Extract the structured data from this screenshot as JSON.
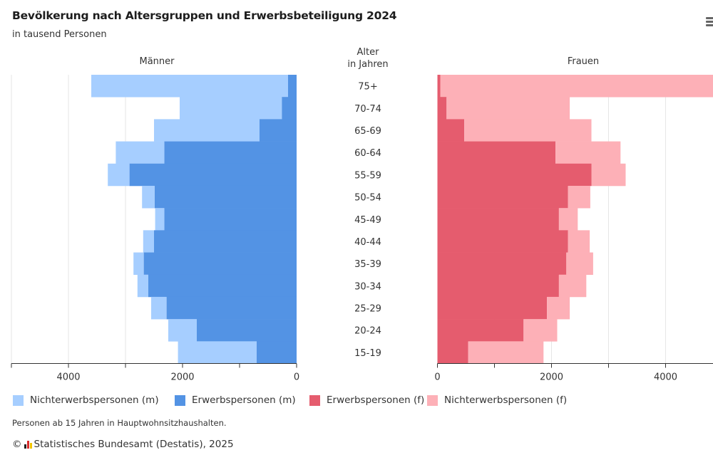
{
  "header": {
    "title": "Bevölkerung nach Altersgruppen und Erwerbsbeteiligung 2024",
    "subtitle": "in tausend Personen",
    "menu_icon": "hamburger-menu-icon"
  },
  "panels": {
    "left_title": "Männer",
    "center_title_line1": "Alter",
    "center_title_line2": "in Jahren",
    "right_title": "Frauen"
  },
  "colors": {
    "men_non_working": "#A6CEFF",
    "men_working": "#5393E4",
    "women_working": "#E55C6E",
    "women_non_working": "#FDB0B7",
    "grid": "#e6e6e6",
    "axis": "#333333"
  },
  "chart_data": {
    "type": "bar",
    "subtype": "population-pyramid (stacked horizontal bars, mirrored)",
    "title": "Bevölkerung nach Altersgruppen und Erwerbsbeteiligung 2024",
    "subtitle": "in tausend Personen",
    "unit": "tausend Personen",
    "categories": [
      "75+",
      "70-74",
      "65-69",
      "60-64",
      "55-59",
      "50-54",
      "45-49",
      "40-44",
      "35-39",
      "30-34",
      "25-29",
      "20-24",
      "15-19"
    ],
    "category_axis_label": "Alter in Jahren",
    "left_panel": {
      "label": "Männer",
      "xlim": [
        0,
        5000
      ],
      "ticks": [
        0,
        2000,
        4000
      ],
      "minor_ticks": [
        1000,
        3000,
        5000
      ],
      "direction": "reversed",
      "series": [
        {
          "name": "Erwerbspersonen (m)",
          "values": [
            150,
            260,
            650,
            2320,
            2930,
            2490,
            2320,
            2500,
            2680,
            2600,
            2280,
            1750,
            700
          ]
        },
        {
          "name": "Nichterwerbspersonen (m)",
          "values": [
            3450,
            1790,
            1850,
            850,
            380,
            220,
            160,
            190,
            180,
            190,
            270,
            500,
            1380
          ]
        }
      ]
    },
    "right_panel": {
      "label": "Frauen",
      "xlim": [
        0,
        5000
      ],
      "ticks": [
        0,
        2000,
        4000
      ],
      "minor_ticks": [
        1000,
        3000,
        5000
      ],
      "series": [
        {
          "name": "Erwerbspersonen (f)",
          "values": [
            50,
            160,
            470,
            2070,
            2700,
            2290,
            2130,
            2290,
            2260,
            2130,
            1920,
            1510,
            540
          ]
        },
        {
          "name": "Nichterwerbspersonen (f)",
          "values": [
            5250,
            2160,
            2230,
            1140,
            600,
            390,
            330,
            380,
            470,
            480,
            400,
            590,
            1320
          ]
        }
      ]
    },
    "legend": [
      "Nichterwerbspersonen (m)",
      "Erwerbspersonen (m)",
      "Erwerbspersonen (f)",
      "Nichterwerbspersonen (f)"
    ],
    "legend_position": "bottom",
    "grid": true
  },
  "legend": {
    "items": [
      {
        "label": "Nichterwerbspersonen (m)",
        "color": "#A6CEFF"
      },
      {
        "label": "Erwerbspersonen (m)",
        "color": "#5393E4"
      },
      {
        "label": "Erwerbspersonen (f)",
        "color": "#E55C6E"
      },
      {
        "label": "Nichterwerbspersonen (f)",
        "color": "#FDB0B7"
      }
    ]
  },
  "footer": {
    "note": "Personen ab 15 Jahren in Hauptwohnsitzhaushalten.",
    "copyright_symbol": "©",
    "source": "Statistisches Bundesamt (Destatis), 2025",
    "logo_icon": "destatis-logo-icon"
  }
}
